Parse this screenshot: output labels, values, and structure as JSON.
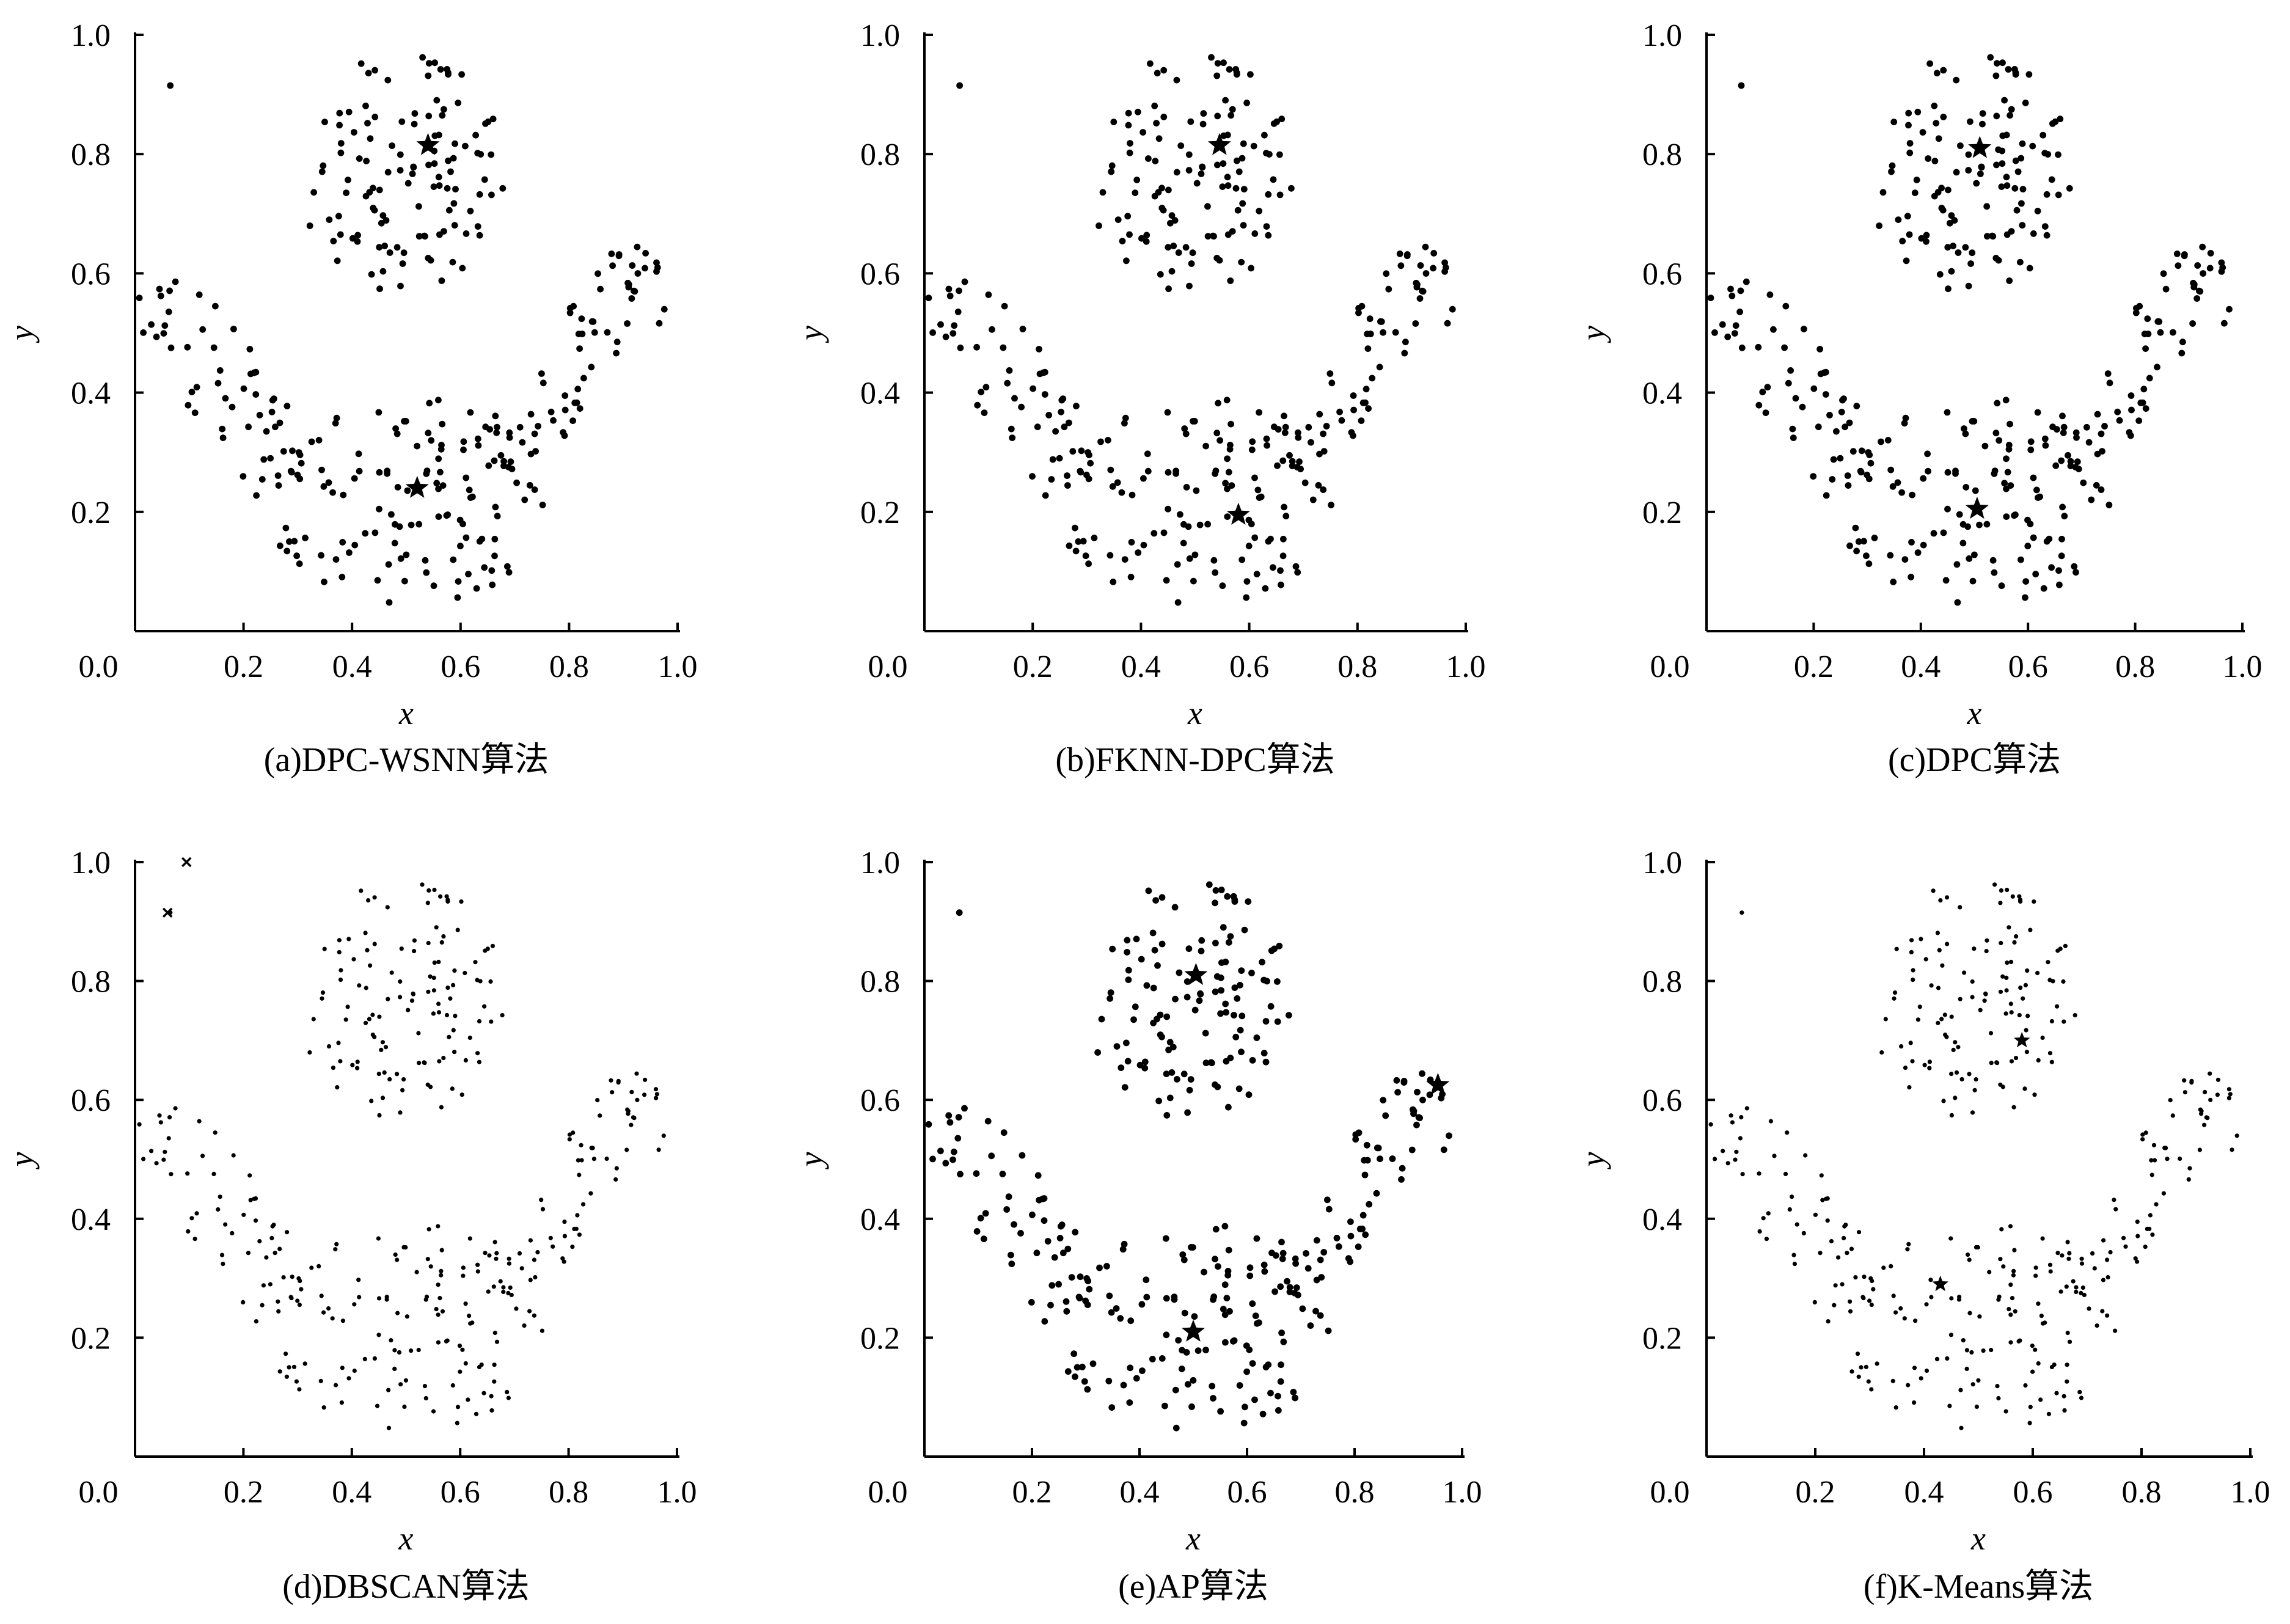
{
  "figure": {
    "background": "#ffffff",
    "ink": "#000000"
  },
  "chart_data": [
    {
      "type": "scatter",
      "caption": "(a)DPC-WSNN算法",
      "xlabel": "x",
      "ylabel": "y",
      "xlim": [
        0,
        1
      ],
      "ylim": [
        0,
        1
      ],
      "x_ticks": [
        "0.0",
        "0.2",
        "0.4",
        "0.6",
        "0.8",
        "1.0"
      ],
      "y_ticks": [
        "0.2",
        "0.4",
        "0.6",
        "0.8",
        "1.0"
      ],
      "grid": false,
      "points": "dense-dots",
      "centers": [
        [
          0.54,
          0.815
        ],
        [
          0.52,
          0.24
        ]
      ],
      "noise": []
    },
    {
      "type": "scatter",
      "caption": "(b)FKNN-DPC算法",
      "xlabel": "x",
      "ylabel": "y",
      "xlim": [
        0,
        1
      ],
      "ylim": [
        0,
        1
      ],
      "x_ticks": [
        "0.0",
        "0.2",
        "0.4",
        "0.6",
        "0.8",
        "1.0"
      ],
      "y_ticks": [
        "0.2",
        "0.4",
        "0.6",
        "0.8",
        "1.0"
      ],
      "grid": false,
      "points": "dense-dots",
      "centers": [
        [
          0.545,
          0.815
        ],
        [
          0.58,
          0.195
        ]
      ],
      "noise": []
    },
    {
      "type": "scatter",
      "caption": "(c)DPC算法",
      "xlabel": "x",
      "ylabel": "y",
      "xlim": [
        0,
        1
      ],
      "ylim": [
        0,
        1
      ],
      "x_ticks": [
        "0.0",
        "0.2",
        "0.4",
        "0.6",
        "0.8",
        "1.0"
      ],
      "y_ticks": [
        "0.2",
        "0.4",
        "0.6",
        "0.8",
        "1.0"
      ],
      "grid": false,
      "points": "dense-dots",
      "centers": [
        [
          0.51,
          0.81
        ],
        [
          0.505,
          0.205
        ]
      ],
      "noise": []
    },
    {
      "type": "scatter",
      "caption": "(d)DBSCAN算法",
      "xlabel": "x",
      "ylabel": "y",
      "xlim": [
        0,
        1
      ],
      "ylim": [
        0,
        1
      ],
      "x_ticks": [
        "0.0",
        "0.2",
        "0.4",
        "0.6",
        "0.8",
        "1.0"
      ],
      "y_ticks": [
        "0.2",
        "0.4",
        "0.6",
        "0.8",
        "1.0"
      ],
      "grid": false,
      "points": "small-dots",
      "centers": [],
      "noise": [
        [
          0.095,
          1.0
        ],
        [
          0.06,
          0.915
        ]
      ]
    },
    {
      "type": "scatter",
      "caption": "(e)AP算法",
      "xlabel": "x",
      "ylabel": "y",
      "xlim": [
        0,
        1
      ],
      "ylim": [
        0,
        1
      ],
      "x_ticks": [
        "0.0",
        "0.2",
        "0.4",
        "0.6",
        "0.8",
        "1.0"
      ],
      "y_ticks": [
        "0.2",
        "0.4",
        "0.6",
        "0.8",
        "1.0"
      ],
      "grid": false,
      "points": "dense-dots",
      "centers": [
        [
          0.505,
          0.81
        ],
        [
          0.955,
          0.625
        ],
        [
          0.5,
          0.21
        ]
      ],
      "noise": []
    },
    {
      "type": "scatter",
      "caption": "(f)K-Means算法",
      "xlabel": "x",
      "ylabel": "y",
      "xlim": [
        0,
        1
      ],
      "ylim": [
        0,
        1
      ],
      "x_ticks": [
        "0.0",
        "0.2",
        "0.4",
        "0.6",
        "0.8",
        "1.0"
      ],
      "y_ticks": [
        "0.2",
        "0.4",
        "0.6",
        "0.8",
        "1.0"
      ],
      "grid": false,
      "points": "small-dots",
      "centers": [
        [
          0.58,
          0.7
        ],
        [
          0.43,
          0.29
        ]
      ],
      "noise": []
    }
  ]
}
